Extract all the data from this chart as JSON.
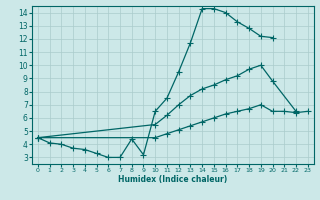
{
  "background_color": "#cce8e8",
  "grid_color": "#aacccc",
  "line_color": "#006666",
  "xlabel": "Humidex (Indice chaleur)",
  "xlim": [
    -0.5,
    23.5
  ],
  "ylim": [
    2.5,
    14.5
  ],
  "xticks": [
    0,
    1,
    2,
    3,
    4,
    5,
    6,
    7,
    8,
    9,
    10,
    11,
    12,
    13,
    14,
    15,
    16,
    17,
    18,
    19,
    20,
    21,
    22,
    23
  ],
  "yticks": [
    3,
    4,
    5,
    6,
    7,
    8,
    9,
    10,
    11,
    12,
    13,
    14
  ],
  "curve1_x": [
    0,
    1,
    2,
    3,
    4,
    5,
    6,
    7,
    8,
    9,
    10,
    11,
    12,
    13,
    14,
    15,
    16,
    17,
    18,
    19,
    20
  ],
  "curve1_y": [
    4.5,
    4.1,
    4.0,
    3.7,
    3.6,
    3.3,
    3.0,
    3.0,
    4.4,
    3.2,
    6.5,
    7.5,
    9.5,
    11.7,
    14.3,
    14.3,
    14.0,
    13.3,
    12.8,
    12.2,
    12.1
  ],
  "curve2_x": [
    0,
    10,
    11,
    12,
    13,
    14,
    15,
    16,
    17,
    18,
    19,
    20,
    22
  ],
  "curve2_y": [
    4.5,
    5.5,
    6.2,
    7.0,
    7.7,
    8.2,
    8.5,
    8.9,
    9.2,
    9.7,
    10.0,
    8.8,
    6.5
  ],
  "curve3_x": [
    0,
    10,
    11,
    12,
    13,
    14,
    15,
    16,
    17,
    18,
    19,
    20,
    21,
    22,
    23
  ],
  "curve3_y": [
    4.5,
    4.5,
    4.8,
    5.1,
    5.4,
    5.7,
    6.0,
    6.3,
    6.5,
    6.7,
    7.0,
    6.5,
    6.5,
    6.4,
    6.5
  ]
}
